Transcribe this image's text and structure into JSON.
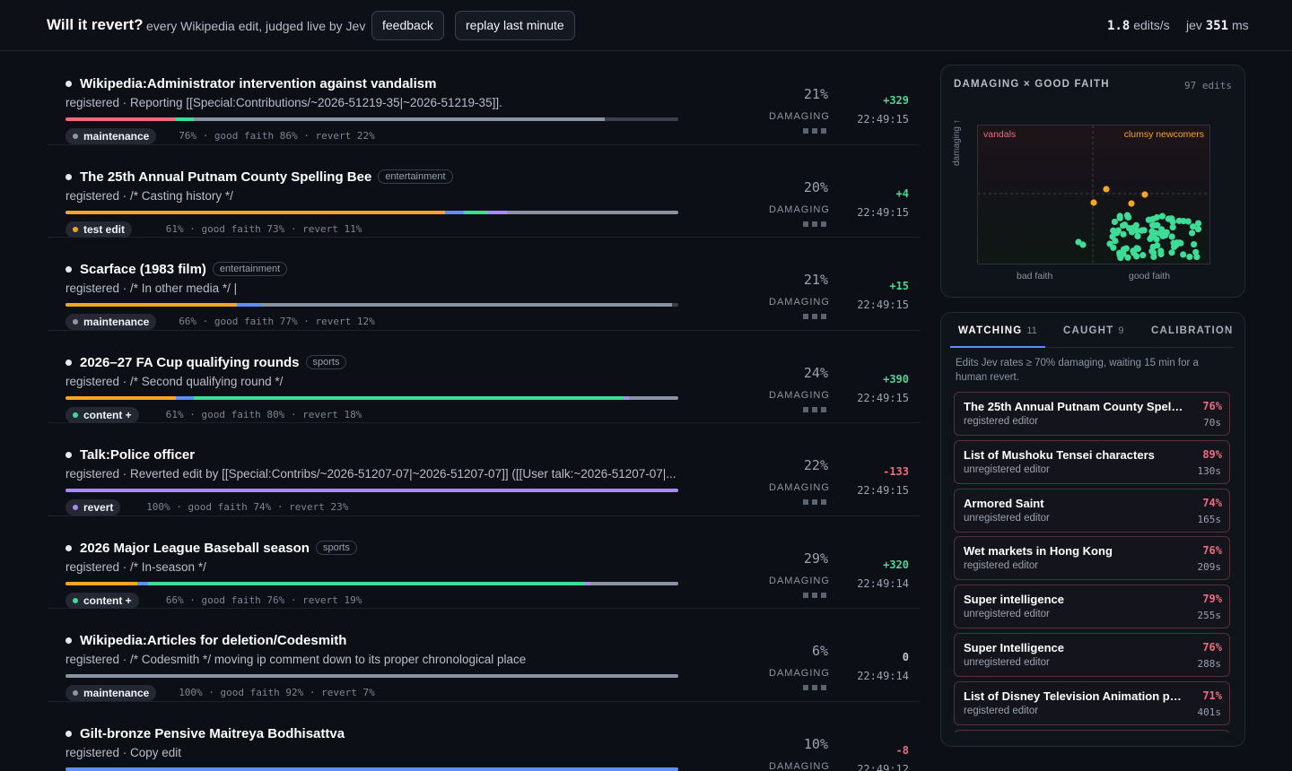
{
  "header": {
    "title": "Will it revert?",
    "tagline": "every Wikipedia edit, judged live by Jev",
    "feedback_label": "feedback",
    "replay_label": "replay last minute",
    "rate_value": "1.8",
    "rate_unit": "edits/s",
    "latency_prefix": "jev",
    "latency_value": "351",
    "latency_unit": "ms"
  },
  "labels": {
    "damaging": "DAMAGING"
  },
  "feed": [
    {
      "title": "Wikipedia:Administrator intervention against vandalism",
      "tag": "",
      "summary": "registered · Reporting [[Special:Contributions/~2026-51219-35|~2026-51219-35]].",
      "chip": "maintenance",
      "chip_color": "#8f97a4",
      "meta": "76% · good faith 86% · revert 22%",
      "pct": "21%",
      "delta": "+329",
      "delta_sign": "pos",
      "time": "22:49:15"
    },
    {
      "title": "The 25th Annual Putnam County Spelling Bee",
      "tag": "entertainment",
      "summary": "registered · /* Casting history */",
      "chip": "test edit",
      "chip_color": "#f5a524",
      "meta": "61% · good faith 73% · revert 11%",
      "pct": "20%",
      "delta": "+4",
      "delta_sign": "pos",
      "time": "22:49:15"
    },
    {
      "title": "Scarface (1983 film)",
      "tag": "entertainment",
      "summary": "registered · /* In other media */ |",
      "chip": "maintenance",
      "chip_color": "#8f97a4",
      "meta": "66% · good faith 77% · revert 12%",
      "pct": "21%",
      "delta": "+15",
      "delta_sign": "pos",
      "time": "22:49:15"
    },
    {
      "title": "2026–27 FA Cup qualifying rounds",
      "tag": "sports",
      "summary": "registered · /* Second qualifying round */",
      "chip": "content +",
      "chip_color": "#3ddc97",
      "meta": "61% · good faith 80% · revert 18%",
      "pct": "24%",
      "delta": "+390",
      "delta_sign": "pos",
      "time": "22:49:15"
    },
    {
      "title": "Talk:Police officer",
      "tag": "",
      "summary": "registered · Reverted edit by [[Special:Contribs/~2026-51207-07|~2026-51207-07]] ([[User talk:~2026-51207-07|...",
      "chip": "revert",
      "chip_color": "#a78bfa",
      "meta": "100% · good faith 74% · revert 23%",
      "pct": "22%",
      "delta": "-133",
      "delta_sign": "neg",
      "time": "22:49:15"
    },
    {
      "title": "2026 Major League Baseball season",
      "tag": "sports",
      "summary": "registered · /* In-season */",
      "chip": "content +",
      "chip_color": "#3ddc97",
      "meta": "66% · good faith 76% · revert 19%",
      "pct": "29%",
      "delta": "+320",
      "delta_sign": "pos",
      "time": "22:49:14"
    },
    {
      "title": "Wikipedia:Articles for deletion/Codesmith",
      "tag": "",
      "summary": "registered · /* Codesmith */ moving ip comment down to its proper chronological place",
      "chip": "maintenance",
      "chip_color": "#8f97a4",
      "meta": "100% · good faith 92% · revert 7%",
      "pct": "6%",
      "delta": "0",
      "delta_sign": "zero",
      "time": "22:49:14"
    },
    {
      "title": "Gilt-bronze Pensive Maitreya Bodhisattva",
      "tag": "",
      "summary": "registered · Copy edit",
      "chip": "",
      "chip_color": "#8f97a4",
      "meta": "",
      "pct": "10%",
      "delta": "-8",
      "delta_sign": "neg",
      "time": "22:49:12"
    }
  ],
  "scatter": {
    "title": "DAMAGING × GOOD FAITH",
    "count": "97 edits",
    "quad_left": "vandals",
    "quad_right": "clumsy newcomers",
    "y_label": "damaging ↑",
    "x_left": "bad faith",
    "x_right": "good faith",
    "colors": {
      "normal": "#3ddc97",
      "flagged": "#f5a524",
      "vandals": "#f06b7e",
      "clumsy": "#f5a524"
    }
  },
  "watch": {
    "tabs": [
      {
        "label": "WATCHING",
        "count": "11"
      },
      {
        "label": "CAUGHT",
        "count": "9"
      },
      {
        "label": "CALIBRATION",
        "count": ""
      }
    ],
    "note": "Edits Jev rates ≥ 70% damaging, waiting 15 min for a human revert.",
    "items": [
      {
        "title": "The 25th Annual Putnam County Spellin...",
        "editor": "registered editor",
        "pct": "76%",
        "age": "70s"
      },
      {
        "title": "List of Mushoku Tensei characters",
        "editor": "unregistered editor",
        "pct": "89%",
        "age": "130s"
      },
      {
        "title": "Armored Saint",
        "editor": "unregistered editor",
        "pct": "74%",
        "age": "165s"
      },
      {
        "title": "Wet markets in Hong Kong",
        "editor": "registered editor",
        "pct": "76%",
        "age": "209s"
      },
      {
        "title": "Super intelligence",
        "editor": "unregistered editor",
        "pct": "79%",
        "age": "255s"
      },
      {
        "title": "Super Intelligence",
        "editor": "unregistered editor",
        "pct": "76%",
        "age": "288s"
      },
      {
        "title": "List of Disney Television Animation prod...",
        "editor": "registered editor",
        "pct": "71%",
        "age": "401s"
      },
      {
        "title": "",
        "editor": "",
        "pct": "",
        "age": ""
      }
    ]
  }
}
